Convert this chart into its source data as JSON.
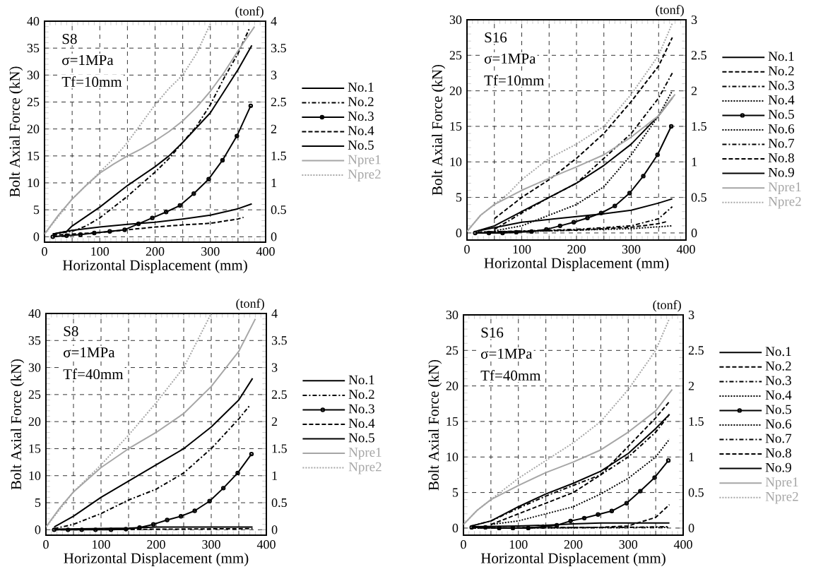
{
  "chart_data": [
    {
      "type": "line",
      "xlabel": "Horizontal Displacement  (mm)",
      "ylabel": "Bolt Axial Force  (kN)",
      "y2label": "(tonf)",
      "annotations": [
        "S8",
        "σ=1MPa",
        "Tf=10mm"
      ],
      "xlim": [
        0,
        400
      ],
      "ylim": [
        -1,
        40
      ],
      "y2lim": [
        -0.1,
        4
      ],
      "xticks": [
        0,
        {
          "value": 50,
          "label": null
        },
        100,
        {
          "value": 150,
          "label": null
        },
        200,
        {
          "value": 250,
          "label": null
        },
        300,
        {
          "value": 350,
          "label": null
        },
        400
      ],
      "yticks": [
        0,
        5,
        10,
        15,
        20,
        25,
        30,
        35,
        40
      ],
      "y2ticks": [
        0,
        0.5,
        1,
        1.5,
        2,
        2.5,
        3,
        3.5,
        4
      ],
      "grid": true,
      "legend": "right",
      "series": [
        {
          "name": "No.1",
          "color": "#000000",
          "line_style": "solid",
          "x": [
            15,
            40,
            50,
            100,
            150,
            200,
            225,
            250,
            300,
            350,
            375
          ],
          "values": [
            0.5,
            1,
            2,
            5.5,
            9.5,
            13,
            15,
            17.5,
            23,
            31,
            35.5
          ]
        },
        {
          "name": "No.2",
          "color": "#000000",
          "line_style": "dashdot",
          "x": [
            15,
            50,
            75,
            100,
            150,
            200,
            225,
            250,
            275,
            300,
            325,
            350,
            370
          ],
          "values": [
            0.5,
            1,
            2,
            3.5,
            7.5,
            12,
            14.5,
            17.5,
            20.5,
            24.5,
            29.5,
            34,
            38.5
          ]
        },
        {
          "name": "No.3",
          "color": "#000000",
          "line_style": "solid",
          "marker": "circle",
          "x": [
            15,
            40,
            65,
            90,
            118,
            145,
            170,
            195,
            220,
            245,
            270,
            297,
            322,
            348,
            373
          ],
          "values": [
            0,
            0.2,
            0.4,
            0.7,
            1,
            1.3,
            2.4,
            3.5,
            4.6,
            5.8,
            8,
            10.7,
            14.2,
            18.7,
            24.3
          ]
        },
        {
          "name": "No.4",
          "color": "#000000",
          "line_style": "dashed",
          "x": [
            15,
            100,
            150,
            200,
            250,
            300,
            350,
            360
          ],
          "values": [
            0.3,
            0.8,
            1.3,
            1.8,
            2.2,
            2.5,
            3.3,
            3.6
          ]
        },
        {
          "name": "No.5",
          "color": "#000000",
          "line_style": "solid",
          "x": [
            15,
            50,
            100,
            150,
            200,
            250,
            300,
            350,
            375
          ],
          "values": [
            0.5,
            1.2,
            1.8,
            2.3,
            2.7,
            3.3,
            4,
            5.2,
            6.1
          ]
        },
        {
          "name": "Npre1",
          "color": "#a6a6a6",
          "line_style": "solid",
          "x": [
            0,
            25,
            50,
            75,
            100,
            125,
            150,
            175,
            200,
            225,
            250,
            275,
            300,
            325,
            350,
            380
          ],
          "values": [
            0.5,
            4,
            7,
            9.5,
            11.8,
            13.5,
            15,
            16.3,
            17.8,
            19.5,
            21.5,
            24,
            27,
            30.5,
            34.5,
            39
          ]
        },
        {
          "name": "Npre2",
          "color": "#a6a6a6",
          "line_style": "dotted",
          "x": [
            0,
            50,
            75,
            100,
            125,
            150,
            175,
            200,
            225,
            250,
            275,
            300
          ],
          "values": [
            0.5,
            7,
            9.5,
            12,
            14.5,
            17.5,
            21,
            24.5,
            27.5,
            30,
            34,
            39.5
          ]
        }
      ]
    },
    {
      "type": "line",
      "xlabel": "Horizontal Displacement  (mm)",
      "ylabel": "Bolt Axial Force  (kN)",
      "y2label": "(tonf)",
      "annotations": [
        "S16",
        "σ=1MPa",
        "Tf=10mm"
      ],
      "xlim": [
        0,
        400
      ],
      "ylim": [
        -1,
        30
      ],
      "y2lim": [
        -0.1,
        3
      ],
      "xticks": [
        0,
        {
          "value": 50,
          "label": null
        },
        100,
        {
          "value": 150,
          "label": null
        },
        200,
        {
          "value": 250,
          "label": null
        },
        300,
        {
          "value": 350,
          "label": null
        },
        400
      ],
      "yticks": [
        0,
        5,
        10,
        15,
        20,
        25,
        30
      ],
      "y2ticks": [
        0,
        0.5,
        1,
        1.5,
        2,
        2.5,
        3
      ],
      "grid": true,
      "legend": "right",
      "series": [
        {
          "name": "No.1",
          "color": "#000000",
          "line_style": "solid",
          "x": [
            15,
            50,
            100,
            150,
            200,
            250,
            300,
            350,
            375
          ],
          "values": [
            0.2,
            1,
            3,
            5,
            7,
            9.5,
            12.5,
            16.5,
            19
          ]
        },
        {
          "name": "No.2",
          "color": "#000000",
          "line_style": "dashed",
          "x": [
            50,
            100,
            150,
            200,
            250,
            300,
            350,
            375
          ],
          "values": [
            2,
            5,
            7.5,
            10.5,
            14,
            18.5,
            23.5,
            27.5
          ]
        },
        {
          "name": "No.3",
          "color": "#000000",
          "line_style": "dashdot",
          "x": [
            50,
            100,
            150,
            200,
            250,
            300,
            350,
            375
          ],
          "values": [
            0.5,
            2.8,
            5,
            7,
            10.5,
            14,
            19,
            22.5
          ]
        },
        {
          "name": "No.4",
          "color": "#000000",
          "line_style": "dotted",
          "x": [
            50,
            100,
            150,
            200,
            250,
            300,
            350,
            375
          ],
          "values": [
            0.3,
            1,
            2.5,
            4,
            6.5,
            11,
            16.5,
            20
          ]
        },
        {
          "name": "No.5",
          "color": "#000000",
          "line_style": "solid",
          "marker": "circle",
          "x": [
            15,
            40,
            65,
            90,
            118,
            145,
            170,
            195,
            220,
            245,
            270,
            297,
            322,
            348,
            373
          ],
          "values": [
            0,
            0,
            0,
            0.1,
            0.2,
            0.5,
            1,
            1.5,
            2.1,
            2.8,
            3.8,
            5.6,
            8,
            11,
            15
          ]
        },
        {
          "name": "No.6",
          "color": "#000000",
          "line_style": "dotted",
          "x": [
            20,
            100,
            200,
            300,
            375
          ],
          "values": [
            0.1,
            0.2,
            0.4,
            0.6,
            1
          ]
        },
        {
          "name": "No.7",
          "color": "#000000",
          "line_style": "dashdot",
          "x": [
            20,
            200,
            300,
            350,
            375
          ],
          "values": [
            0.1,
            0.5,
            1,
            2,
            3.7
          ]
        },
        {
          "name": "No.8",
          "color": "#000000",
          "line_style": "dashed",
          "x": [
            20,
            200,
            300,
            350,
            365
          ],
          "values": [
            0.1,
            0.4,
            0.8,
            1.3,
            1.6
          ]
        },
        {
          "name": "No.9",
          "color": "#000000",
          "line_style": "solid",
          "x": [
            20,
            100,
            150,
            200,
            250,
            300,
            350,
            375
          ],
          "values": [
            0.3,
            1.5,
            1.9,
            2.3,
            2.7,
            3.2,
            4.2,
            4.8
          ]
        },
        {
          "name": "Npre1",
          "color": "#a6a6a6",
          "line_style": "solid",
          "x": [
            0,
            25,
            50,
            100,
            150,
            200,
            250,
            300,
            350,
            380
          ],
          "values": [
            0.2,
            2.5,
            4,
            6,
            7.7,
            9.3,
            11,
            13.5,
            16.5,
            19.5
          ]
        },
        {
          "name": "Npre2",
          "color": "#a6a6a6",
          "line_style": "dotted",
          "x": [
            0,
            25,
            50,
            75,
            100,
            150,
            200,
            250,
            300,
            350,
            375
          ],
          "values": [
            0.2,
            2.5,
            4,
            5.5,
            7.5,
            10.5,
            12.5,
            15,
            19.5,
            25,
            29.5
          ]
        }
      ]
    },
    {
      "type": "line",
      "xlabel": "Horizontal Displacement  (mm)",
      "ylabel": "Bolt Axial Force  (kN)",
      "y2label": "(tonf)",
      "annotations": [
        "S8",
        "σ=1MPa",
        "Tf=40mm"
      ],
      "xlim": [
        0,
        400
      ],
      "ylim": [
        -1,
        40
      ],
      "y2lim": [
        -0.1,
        4
      ],
      "xticks": [
        0,
        {
          "value": 50,
          "label": null
        },
        100,
        {
          "value": 150,
          "label": null
        },
        200,
        {
          "value": 250,
          "label": null
        },
        300,
        {
          "value": 350,
          "label": null
        },
        400
      ],
      "yticks": [
        0,
        5,
        10,
        15,
        20,
        25,
        30,
        35,
        40
      ],
      "y2ticks": [
        0,
        0.5,
        1,
        1.5,
        2,
        2.5,
        3,
        3.5,
        4
      ],
      "grid": true,
      "legend": "right",
      "series": [
        {
          "name": "No.1",
          "color": "#000000",
          "line_style": "solid",
          "x": [
            15,
            50,
            100,
            150,
            200,
            250,
            300,
            350,
            375
          ],
          "values": [
            0.5,
            2.5,
            6,
            9,
            12,
            15,
            19,
            24,
            28
          ]
        },
        {
          "name": "No.2",
          "color": "#000000",
          "line_style": "dashdot",
          "x": [
            15,
            50,
            100,
            150,
            200,
            250,
            300,
            350,
            370
          ],
          "values": [
            0.2,
            1,
            3,
            5.5,
            7.5,
            10.5,
            15,
            20.5,
            23
          ]
        },
        {
          "name": "No.3",
          "color": "#000000",
          "line_style": "solid",
          "marker": "circle",
          "x": [
            15,
            40,
            65,
            90,
            118,
            145,
            170,
            195,
            220,
            245,
            270,
            297,
            322,
            348,
            373
          ],
          "values": [
            0,
            0,
            0,
            0,
            0,
            0.1,
            0.4,
            1,
            1.8,
            2.5,
            3.5,
            5.3,
            7.7,
            10.5,
            14
          ]
        },
        {
          "name": "No.4",
          "color": "#000000",
          "line_style": "dashed",
          "x": [
            15,
            200,
            375
          ],
          "values": [
            0,
            0.1,
            0.2
          ]
        },
        {
          "name": "No.5",
          "color": "#000000",
          "line_style": "solid",
          "x": [
            15,
            150,
            200,
            375
          ],
          "values": [
            0.1,
            0.3,
            0.5,
            0.5
          ]
        },
        {
          "name": "Npre1",
          "color": "#a6a6a6",
          "line_style": "solid",
          "x": [
            0,
            25,
            50,
            100,
            150,
            200,
            250,
            300,
            350,
            380
          ],
          "values": [
            0.5,
            4,
            7,
            11.5,
            15,
            18,
            21.5,
            26.5,
            33,
            39
          ]
        },
        {
          "name": "Npre2",
          "color": "#a6a6a6",
          "line_style": "dotted",
          "x": [
            0,
            50,
            100,
            150,
            200,
            250,
            300
          ],
          "values": [
            0.5,
            7,
            12,
            17.5,
            23.5,
            30,
            40
          ]
        }
      ]
    },
    {
      "type": "line",
      "xlabel": "Horizontal Displacement  (mm)",
      "ylabel": "Bolt Axial Force  (kN)",
      "y2label": "(tonf)",
      "annotations": [
        "S16",
        "σ=1MPa",
        "Tf=40mm"
      ],
      "xlim": [
        0,
        400
      ],
      "ylim": [
        -1,
        30
      ],
      "y2lim": [
        -0.1,
        3
      ],
      "xticks": [
        0,
        {
          "value": 50,
          "label": null
        },
        100,
        {
          "value": 150,
          "label": null
        },
        200,
        {
          "value": 250,
          "label": null
        },
        300,
        {
          "value": 350,
          "label": null
        },
        400
      ],
      "yticks": [
        0,
        5,
        10,
        15,
        20,
        25,
        30
      ],
      "y2ticks": [
        0,
        0.5,
        1,
        1.5,
        2,
        2.5,
        3
      ],
      "grid": true,
      "legend": "right",
      "series": [
        {
          "name": "No.1",
          "color": "#000000",
          "line_style": "solid",
          "x": [
            15,
            50,
            100,
            150,
            200,
            250,
            300,
            350,
            375
          ],
          "values": [
            0.3,
            1,
            3,
            4.8,
            6.3,
            8,
            10.5,
            14,
            16
          ]
        },
        {
          "name": "No.2",
          "color": "#000000",
          "line_style": "dashed",
          "x": [
            50,
            100,
            150,
            200,
            250,
            300,
            350,
            375
          ],
          "values": [
            0.5,
            2,
            3.5,
            5,
            7.5,
            11.5,
            15.5,
            17.8
          ]
        },
        {
          "name": "No.3",
          "color": "#000000",
          "line_style": "dashdot",
          "x": [
            15,
            50,
            100,
            150,
            200,
            250,
            300,
            350,
            375
          ],
          "values": [
            0.3,
            1,
            2.8,
            4.5,
            6,
            7.5,
            10,
            13.5,
            16
          ]
        },
        {
          "name": "No.4",
          "color": "#000000",
          "line_style": "dotted",
          "x": [
            50,
            100,
            150,
            200,
            250,
            300,
            350,
            375
          ],
          "values": [
            0.5,
            1,
            2,
            3,
            4.8,
            7,
            10,
            12.5
          ]
        },
        {
          "name": "No.5",
          "color": "#000000",
          "line_style": "solid",
          "marker": "circle",
          "x": [
            15,
            40,
            65,
            90,
            118,
            145,
            170,
            195,
            220,
            245,
            270,
            297,
            322,
            348,
            373
          ],
          "values": [
            0.1,
            0.1,
            0,
            0,
            0,
            0.2,
            0.4,
            1,
            1.4,
            1.9,
            2.4,
            3.5,
            5.2,
            7.1,
            9.5
          ]
        },
        {
          "name": "No.6",
          "color": "#000000",
          "line_style": "dotted",
          "x": [
            15,
            375
          ],
          "values": [
            0,
            0.1
          ]
        },
        {
          "name": "No.7",
          "color": "#000000",
          "line_style": "dashdot",
          "x": [
            15,
            300,
            375
          ],
          "values": [
            0,
            0.1,
            0.2
          ]
        },
        {
          "name": "No.8",
          "color": "#000000",
          "line_style": "dashed",
          "x": [
            15,
            250,
            300,
            350,
            375
          ],
          "values": [
            0,
            0.1,
            0.3,
            1.5,
            3.3
          ]
        },
        {
          "name": "No.9",
          "color": "#000000",
          "line_style": "solid",
          "x": [
            15,
            100,
            150,
            200,
            250,
            375
          ],
          "values": [
            0.2,
            0.3,
            0.4,
            0.6,
            0.7,
            0.7
          ]
        },
        {
          "name": "Npre1",
          "color": "#a6a6a6",
          "line_style": "solid",
          "x": [
            0,
            25,
            50,
            100,
            150,
            200,
            250,
            300,
            350,
            380
          ],
          "values": [
            0.5,
            2.5,
            4,
            6,
            7.8,
            9.3,
            11,
            13.5,
            16.5,
            19.5
          ]
        },
        {
          "name": "Npre2",
          "color": "#a6a6a6",
          "line_style": "dotted",
          "x": [
            0,
            25,
            50,
            100,
            150,
            200,
            250,
            300,
            350,
            375
          ],
          "values": [
            0.5,
            2.5,
            4,
            7,
            9.5,
            12,
            15,
            19.5,
            25,
            29.5
          ]
        }
      ]
    }
  ]
}
